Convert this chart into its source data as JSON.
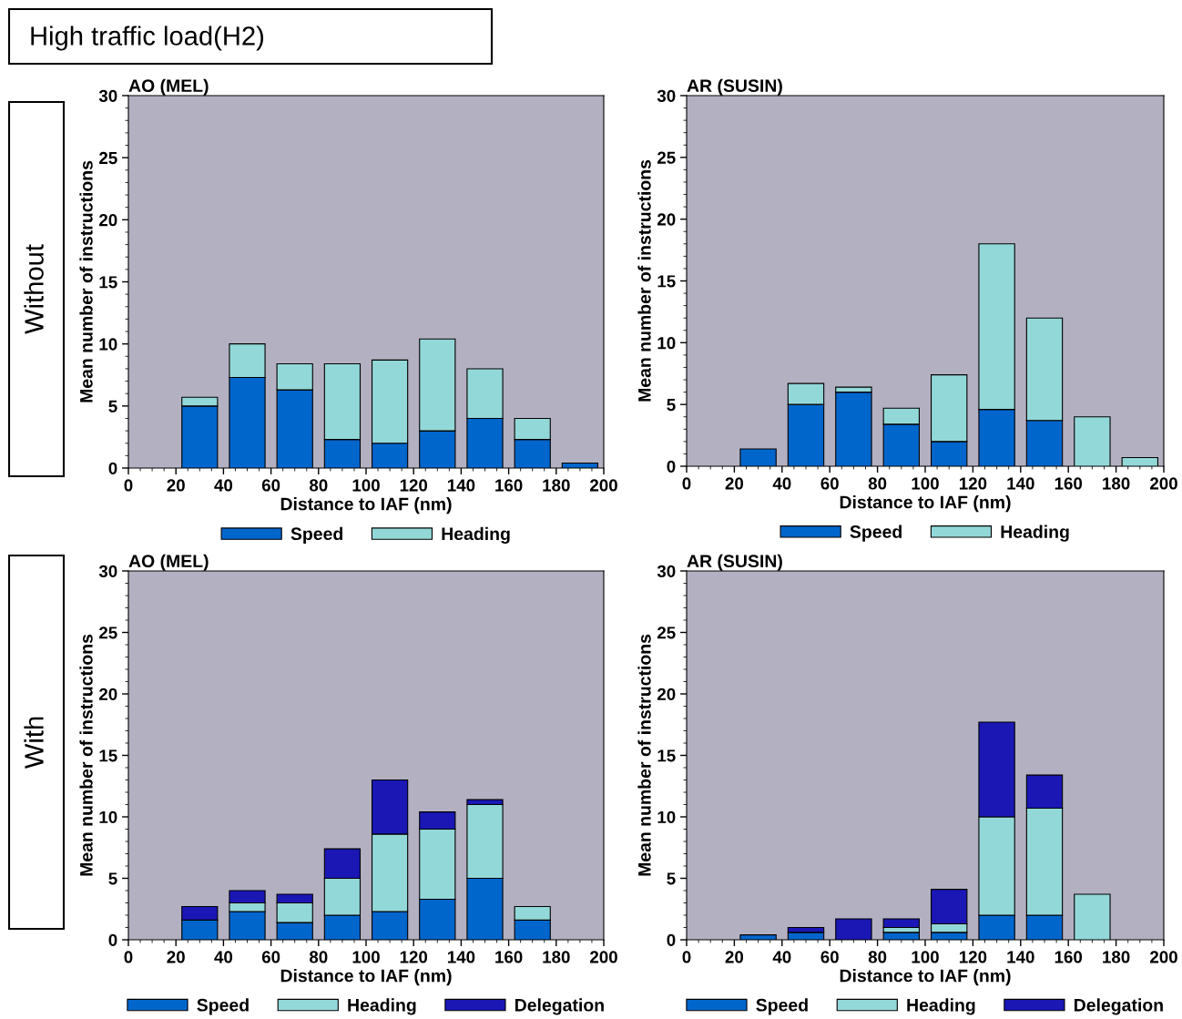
{
  "chart_data": [
    {
      "type": "bar",
      "stacked": true,
      "title": "AO (MEL)",
      "xlabel": "Distance to IAF (nm)",
      "ylabel": "Mean number of instructions",
      "x": [
        30,
        50,
        70,
        90,
        110,
        130,
        150,
        170,
        190
      ],
      "series": [
        {
          "name": "Speed",
          "color": "#0066cc",
          "values": [
            5.0,
            7.3,
            6.3,
            2.3,
            2.0,
            3.0,
            4.0,
            2.3,
            0.4
          ]
        },
        {
          "name": "Heading",
          "color": "#93d8d8",
          "values": [
            0.7,
            2.7,
            2.1,
            6.1,
            6.7,
            7.4,
            4.0,
            1.7,
            null
          ]
        }
      ],
      "xlim": [
        0,
        200
      ],
      "xticks": [
        0,
        20,
        40,
        60,
        80,
        100,
        120,
        140,
        160,
        180,
        200
      ],
      "ylim": [
        0,
        30
      ],
      "yticks": [
        0,
        5,
        10,
        15,
        20,
        25,
        30
      ],
      "grid": false,
      "legend": "bottom",
      "annotations": [
        "High traffic load(H2)",
        "Without"
      ]
    },
    {
      "type": "bar",
      "stacked": true,
      "title": "AR (SUSIN)",
      "xlabel": "Distance to IAF (nm)",
      "ylabel": "Mean number of instructions",
      "x": [
        30,
        50,
        70,
        90,
        110,
        130,
        150,
        170,
        190
      ],
      "series": [
        {
          "name": "Speed",
          "color": "#0066cc",
          "values": [
            1.4,
            5.0,
            6.0,
            3.4,
            2.0,
            4.6,
            3.7,
            null,
            null
          ]
        },
        {
          "name": "Heading",
          "color": "#93d8d8",
          "values": [
            null,
            1.7,
            0.4,
            1.3,
            5.4,
            13.4,
            8.3,
            4.0,
            0.7
          ]
        }
      ],
      "xlim": [
        0,
        200
      ],
      "xticks": [
        0,
        20,
        40,
        60,
        80,
        100,
        120,
        140,
        160,
        180,
        200
      ],
      "ylim": [
        0,
        30
      ],
      "yticks": [
        0,
        5,
        10,
        15,
        20,
        25,
        30
      ],
      "grid": false,
      "legend": "bottom"
    },
    {
      "type": "bar",
      "stacked": true,
      "title": "AO (MEL)",
      "xlabel": "Distance to IAF (nm)",
      "ylabel": "Mean number of instructions",
      "x": [
        30,
        50,
        70,
        90,
        110,
        130,
        150,
        170
      ],
      "series": [
        {
          "name": "Speed",
          "color": "#0066cc",
          "values": [
            1.6,
            2.3,
            1.4,
            2.0,
            2.3,
            3.3,
            5.0,
            1.6
          ]
        },
        {
          "name": "Heading",
          "color": "#93d8d8",
          "values": [
            null,
            0.7,
            1.6,
            3.0,
            6.3,
            5.7,
            6.0,
            1.1
          ]
        },
        {
          "name": "Delegation",
          "color": "#1a17b5",
          "values": [
            1.1,
            1.0,
            0.7,
            2.4,
            4.4,
            1.4,
            0.4,
            null
          ]
        }
      ],
      "xlim": [
        0,
        200
      ],
      "xticks": [
        0,
        20,
        40,
        60,
        80,
        100,
        120,
        140,
        160,
        180,
        200
      ],
      "ylim": [
        0,
        30
      ],
      "yticks": [
        0,
        5,
        10,
        15,
        20,
        25,
        30
      ],
      "grid": false,
      "legend": "bottom",
      "annotations": [
        "With"
      ]
    },
    {
      "type": "bar",
      "stacked": true,
      "title": "AR (SUSIN)",
      "xlabel": "Distance to IAF (nm)",
      "ylabel": "Mean number of instructions",
      "x": [
        30,
        50,
        70,
        90,
        110,
        130,
        150,
        170
      ],
      "series": [
        {
          "name": "Speed",
          "color": "#0066cc",
          "values": [
            0.4,
            0.6,
            null,
            0.6,
            0.6,
            2.0,
            2.0,
            null
          ]
        },
        {
          "name": "Heading",
          "color": "#93d8d8",
          "values": [
            null,
            null,
            null,
            0.4,
            0.7,
            8.0,
            8.7,
            3.7
          ]
        },
        {
          "name": "Delegation",
          "color": "#1a17b5",
          "values": [
            null,
            0.4,
            1.7,
            0.7,
            2.8,
            7.7,
            2.7,
            null
          ]
        }
      ],
      "xlim": [
        0,
        200
      ],
      "xticks": [
        0,
        20,
        40,
        60,
        80,
        100,
        120,
        140,
        160,
        180,
        200
      ],
      "ylim": [
        0,
        30
      ],
      "yticks": [
        0,
        5,
        10,
        15,
        20,
        25,
        30
      ],
      "grid": false,
      "legend": "bottom"
    }
  ]
}
